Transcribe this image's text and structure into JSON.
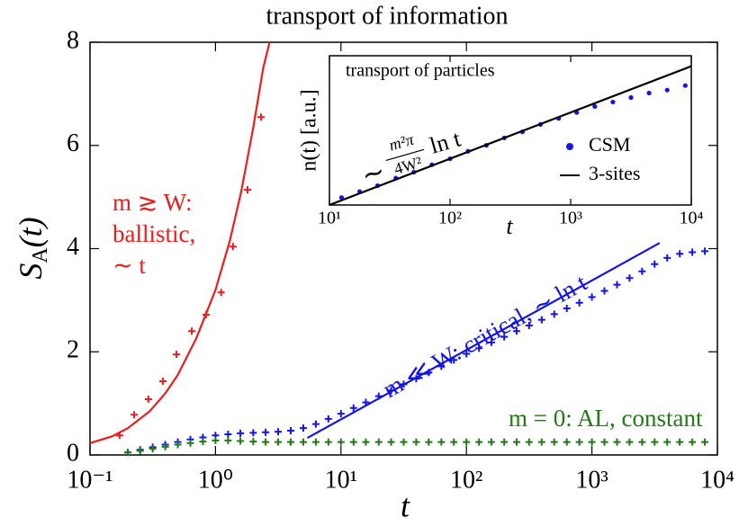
{
  "chart_data": [
    {
      "type": "line",
      "title": "transport of information",
      "xlabel": "t",
      "ylabel": {
        "symbol": "S",
        "subscript": "A",
        "argument": "(t)"
      },
      "xscale": "log",
      "xlim": [
        0.1,
        10000
      ],
      "ylim": [
        0,
        8
      ],
      "xticks": [
        {
          "value": 0.1,
          "label": "10⁻¹"
        },
        {
          "value": 1,
          "label": "10⁰"
        },
        {
          "value": 10,
          "label": "10¹"
        },
        {
          "value": 100,
          "label": "10²"
        },
        {
          "value": 1000,
          "label": "10³"
        },
        {
          "value": 10000,
          "label": "10⁴"
        }
      ],
      "yticks": [
        0,
        2,
        4,
        6,
        8
      ],
      "x": [
        0.2,
        0.251,
        0.316,
        0.398,
        0.501,
        0.631,
        0.794,
        1,
        1.26,
        1.58,
        2,
        2.51,
        3.16,
        3.98,
        5.01,
        6.31,
        7.94,
        10,
        12.6,
        15.8,
        20,
        25.1,
        31.6,
        39.8,
        50.1,
        63.1,
        79.4,
        100,
        126,
        158,
        200,
        251,
        316,
        398,
        501,
        631,
        794,
        1000,
        1259,
        1585,
        1995,
        2512,
        3162,
        3981,
        5012,
        6310,
        7943
      ],
      "series": [
        {
          "color": "#ee1c1c",
          "style": "line",
          "x": [
            0.1,
            0.15,
            0.2,
            0.3,
            0.4,
            0.5,
            0.7,
            1,
            1.3,
            1.6,
            2,
            2.4,
            2.7
          ],
          "values": [
            0.23,
            0.36,
            0.52,
            0.85,
            1.2,
            1.55,
            2.25,
            3.2,
            4.15,
            5.1,
            6.35,
            7.5,
            8.0
          ]
        },
        {
          "color": "#ee1c1c",
          "style": "plus",
          "x": [
            0.172,
            0.225,
            0.292,
            0.381,
            0.489,
            0.647,
            0.841,
            1.11,
            1.38,
            1.8,
            2.31
          ],
          "values": [
            0.38,
            0.78,
            1.08,
            1.43,
            1.95,
            2.4,
            2.72,
            3.15,
            4.04,
            5.14,
            6.55
          ]
        },
        {
          "color": "#1414e6",
          "style": "plus",
          "values": [
            0.05,
            0.1,
            0.15,
            0.2,
            0.25,
            0.3,
            0.34,
            0.38,
            0.4,
            0.42,
            0.43,
            0.44,
            0.45,
            0.47,
            0.52,
            0.6,
            0.7,
            0.8,
            0.91,
            1.02,
            1.14,
            1.25,
            1.37,
            1.48,
            1.6,
            1.72,
            1.84,
            1.96,
            2.07,
            2.18,
            2.29,
            2.4,
            2.51,
            2.62,
            2.73,
            2.84,
            2.95,
            3.06,
            3.18,
            3.3,
            3.43,
            3.56,
            3.7,
            3.82,
            3.9,
            3.93,
            3.95
          ]
        },
        {
          "color": "#1414e6",
          "style": "line",
          "x": [
            5.4,
            3470
          ],
          "values": [
            0.33,
            4.11
          ]
        },
        {
          "color": "#1f7a12",
          "style": "plus",
          "values": [
            0.05,
            0.08,
            0.12,
            0.16,
            0.2,
            0.23,
            0.26,
            0.28,
            0.28,
            0.27,
            0.26,
            0.25,
            0.25,
            0.25,
            0.25,
            0.25,
            0.25,
            0.25,
            0.25,
            0.25,
            0.25,
            0.25,
            0.25,
            0.25,
            0.25,
            0.25,
            0.25,
            0.25,
            0.25,
            0.25,
            0.25,
            0.25,
            0.25,
            0.25,
            0.25,
            0.25,
            0.25,
            0.25,
            0.25,
            0.25,
            0.25,
            0.25,
            0.25,
            0.25,
            0.25,
            0.25,
            0.25
          ]
        }
      ],
      "annotations": [
        {
          "color": "#ee1c1c",
          "lines": [
            "m ≳ W:",
            "ballistic,",
            "∼ t"
          ]
        },
        {
          "color": "#1414e6",
          "lines": [
            "m ≪ W: critical, ∼ ln t"
          ]
        },
        {
          "color": "#1f7a12",
          "lines": [
            "m = 0: AL, constant"
          ]
        }
      ]
    },
    {
      "type": "line",
      "title": "transport of particles",
      "xlabel": "t",
      "ylabel": "n(t) [a.u.]",
      "xscale": "log",
      "xlim": [
        10,
        10000
      ],
      "ylim": [
        0,
        1
      ],
      "xticks": [
        {
          "value": 10,
          "label": "10¹"
        },
        {
          "value": 100,
          "label": "10²"
        },
        {
          "value": 1000,
          "label": "10³"
        },
        {
          "value": 10000,
          "label": "10⁴"
        }
      ],
      "series": [
        {
          "name": "CSM",
          "color": "#1414e6",
          "style": "dot",
          "x": [
            12.6,
            17.8,
            25.1,
            35.5,
            50.1,
            70.8,
            100,
            141,
            200,
            282,
            398,
            562,
            794,
            1122,
            1585,
            2239,
            3162,
            4467,
            6310,
            8913
          ],
          "values": [
            0.05,
            0.09,
            0.13,
            0.18,
            0.22,
            0.27,
            0.31,
            0.36,
            0.4,
            0.45,
            0.49,
            0.54,
            0.58,
            0.62,
            0.66,
            0.69,
            0.72,
            0.75,
            0.77,
            0.8
          ]
        },
        {
          "name": "3-sites",
          "color": "#000000",
          "style": "line",
          "x": [
            10,
            10000
          ],
          "values": [
            0,
            0.93
          ]
        }
      ],
      "formula": {
        "prefix": "∼",
        "numerator": "m²π",
        "denominator": "4W²",
        "suffix": "ln t"
      }
    }
  ]
}
